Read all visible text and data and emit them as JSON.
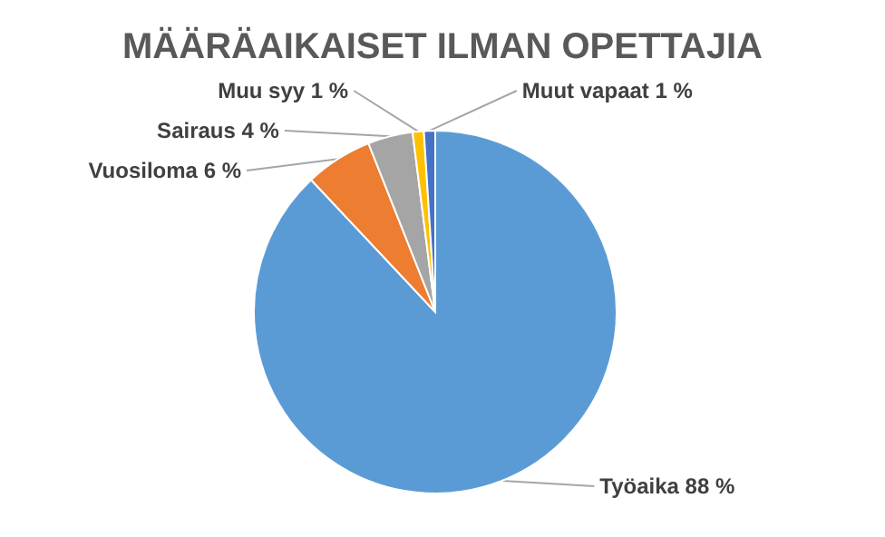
{
  "chart_data": {
    "type": "pie",
    "title": "MÄÄRÄAIKAISET ILMAN OPETTAJIA",
    "categories": [
      "Työaika",
      "Vuosiloma",
      "Sairaus",
      "Muu syy",
      "Muut vapaat"
    ],
    "values": [
      88,
      6,
      4,
      1,
      1
    ],
    "value_labels": [
      "88 %",
      "6 %",
      "4 %",
      "1 %",
      "1 %"
    ],
    "colors": [
      "#5b9bd5",
      "#ed7d31",
      "#a5a5a5",
      "#ffc000",
      "#4472c4"
    ]
  }
}
